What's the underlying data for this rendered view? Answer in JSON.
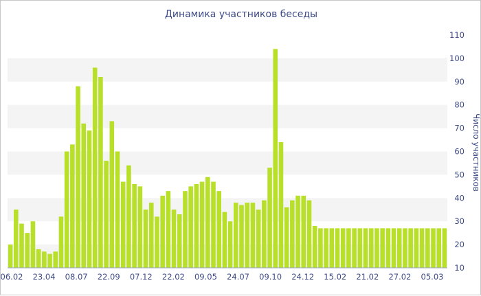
{
  "chart_data": {
    "type": "bar",
    "title": "Динамика участников беседы",
    "ylabel": "Число участников",
    "xlabel": "",
    "ylim": [
      10,
      110
    ],
    "yticks": [
      10,
      20,
      30,
      40,
      50,
      60,
      70,
      80,
      90,
      100,
      110
    ],
    "y_axis_side": "right",
    "bar_color": "#b8e02a",
    "band_color": "#f4f4f4",
    "tick_color": "#3d4a86",
    "x_tick_labels": [
      "06.02",
      "23.04",
      "08.07",
      "22.09",
      "07.12",
      "22.02",
      "09.05",
      "24.07",
      "09.10",
      "24.12",
      "15.02",
      "21.02",
      "27.02",
      "05.03"
    ],
    "values": [
      20,
      35,
      29,
      25,
      30,
      18,
      17,
      16,
      17,
      32,
      60,
      63,
      88,
      72,
      69,
      96,
      92,
      56,
      73,
      60,
      47,
      54,
      46,
      45,
      35,
      38,
      32,
      41,
      43,
      35,
      33,
      43,
      45,
      46,
      47,
      49,
      47,
      43,
      34,
      30,
      38,
      37,
      38,
      38,
      35,
      39,
      53,
      104,
      64,
      36,
      39,
      41,
      41,
      39,
      28,
      27,
      27,
      27,
      27,
      27,
      27,
      27,
      27,
      27,
      27,
      27,
      27,
      27,
      27,
      27,
      27,
      27,
      27,
      27,
      27,
      27,
      27,
      27
    ]
  }
}
